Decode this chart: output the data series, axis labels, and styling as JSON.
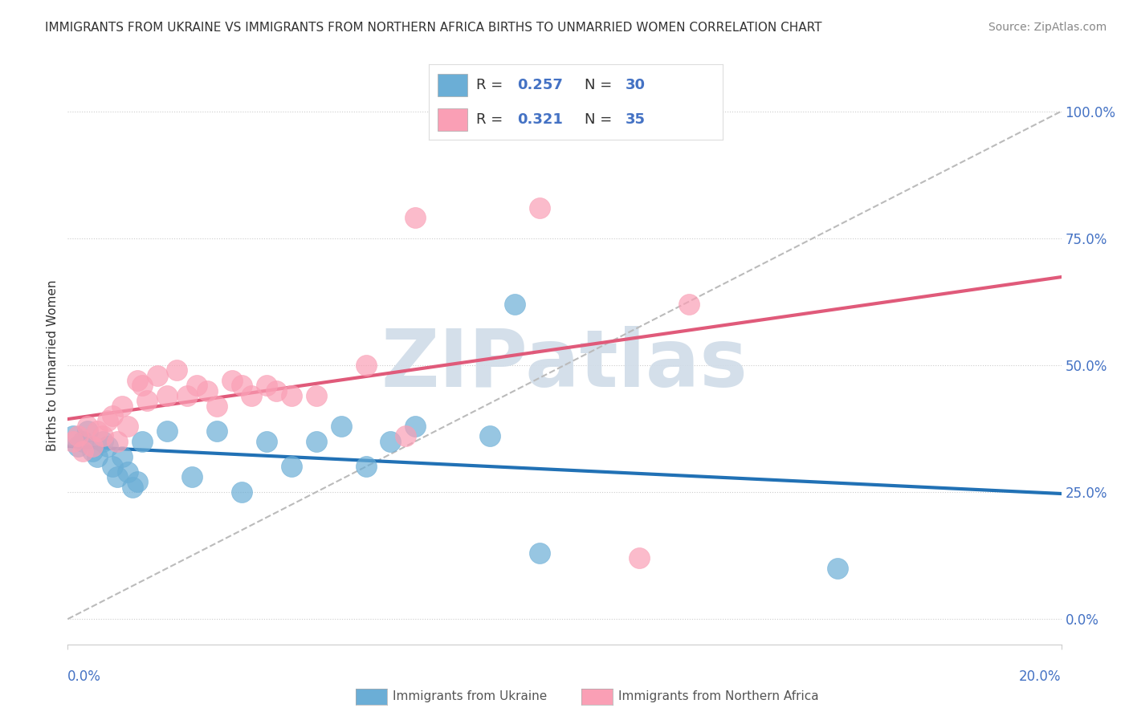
{
  "title": "IMMIGRANTS FROM UKRAINE VS IMMIGRANTS FROM NORTHERN AFRICA BIRTHS TO UNMARRIED WOMEN CORRELATION CHART",
  "source": "Source: ZipAtlas.com",
  "ylabel": "Births to Unmarried Women",
  "right_yticklabels": [
    "0.0%",
    "25.0%",
    "50.0%",
    "75.0%",
    "100.0%"
  ],
  "right_ytick_vals": [
    0.0,
    0.25,
    0.5,
    0.75,
    1.0
  ],
  "ukraine_R": 0.257,
  "ukraine_N": 30,
  "northafrica_R": 0.321,
  "northafrica_N": 35,
  "ukraine_color": "#6baed6",
  "northafrica_color": "#fa9fb5",
  "ukraine_line_color": "#2171b5",
  "northafrica_line_color": "#e05a7a",
  "diagonal_line_color": "#bbbbbb",
  "background_color": "#ffffff",
  "ukraine_x": [
    0.001,
    0.002,
    0.003,
    0.004,
    0.005,
    0.006,
    0.007,
    0.008,
    0.009,
    0.01,
    0.011,
    0.012,
    0.013,
    0.014,
    0.015,
    0.02,
    0.025,
    0.03,
    0.035,
    0.04,
    0.045,
    0.05,
    0.055,
    0.06,
    0.065,
    0.07,
    0.085,
    0.09,
    0.095,
    0.155
  ],
  "ukraine_y": [
    0.36,
    0.34,
    0.35,
    0.37,
    0.33,
    0.32,
    0.35,
    0.34,
    0.3,
    0.28,
    0.32,
    0.29,
    0.26,
    0.27,
    0.35,
    0.37,
    0.28,
    0.37,
    0.25,
    0.35,
    0.3,
    0.35,
    0.38,
    0.3,
    0.35,
    0.38,
    0.36,
    0.62,
    0.13,
    0.1
  ],
  "northafrica_x": [
    0.001,
    0.002,
    0.003,
    0.004,
    0.005,
    0.006,
    0.007,
    0.008,
    0.009,
    0.01,
    0.011,
    0.012,
    0.014,
    0.015,
    0.016,
    0.018,
    0.02,
    0.022,
    0.024,
    0.026,
    0.028,
    0.03,
    0.033,
    0.035,
    0.037,
    0.04,
    0.042,
    0.045,
    0.05,
    0.06,
    0.068,
    0.07,
    0.095,
    0.115,
    0.125
  ],
  "northafrica_y": [
    0.35,
    0.36,
    0.33,
    0.38,
    0.34,
    0.37,
    0.36,
    0.39,
    0.4,
    0.35,
    0.42,
    0.38,
    0.47,
    0.46,
    0.43,
    0.48,
    0.44,
    0.49,
    0.44,
    0.46,
    0.45,
    0.42,
    0.47,
    0.46,
    0.44,
    0.46,
    0.45,
    0.44,
    0.44,
    0.5,
    0.36,
    0.79,
    0.81,
    0.12,
    0.62
  ],
  "watermark": "ZIPatlas",
  "watermark_color": "#d0dce8",
  "xlim": [
    0.0,
    0.2
  ],
  "ylim": [
    -0.05,
    1.05
  ]
}
